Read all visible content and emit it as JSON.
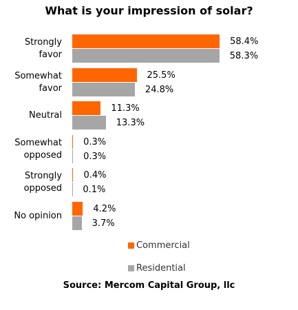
{
  "chart_data": {
    "type": "bar",
    "orientation": "horizontal",
    "title": "What is your impression of solar?",
    "source": "Source: Mercom Capital Group, llc",
    "categories": [
      "Strongly favor",
      "Somewhat favor",
      "Neutral",
      "Somewhat opposed",
      "Strongly opposed",
      "No opinion"
    ],
    "series": [
      {
        "name": "Commercial",
        "color": "#ff6600",
        "values": [
          58.4,
          25.5,
          11.3,
          0.3,
          0.4,
          4.2
        ],
        "value_labels": [
          "58.4%",
          "25.5%",
          "11.3%",
          "0.3%",
          "0.4%",
          "4.2%"
        ]
      },
      {
        "name": "Residential",
        "color": "#a6a6a6",
        "values": [
          58.3,
          24.8,
          13.3,
          0.3,
          0.1,
          3.7
        ],
        "value_labels": [
          "58.3%",
          "24.8%",
          "13.3%",
          "0.3%",
          "0.1%",
          "3.7%"
        ]
      }
    ],
    "xlim": [
      0,
      60
    ],
    "legend": "bottom"
  }
}
